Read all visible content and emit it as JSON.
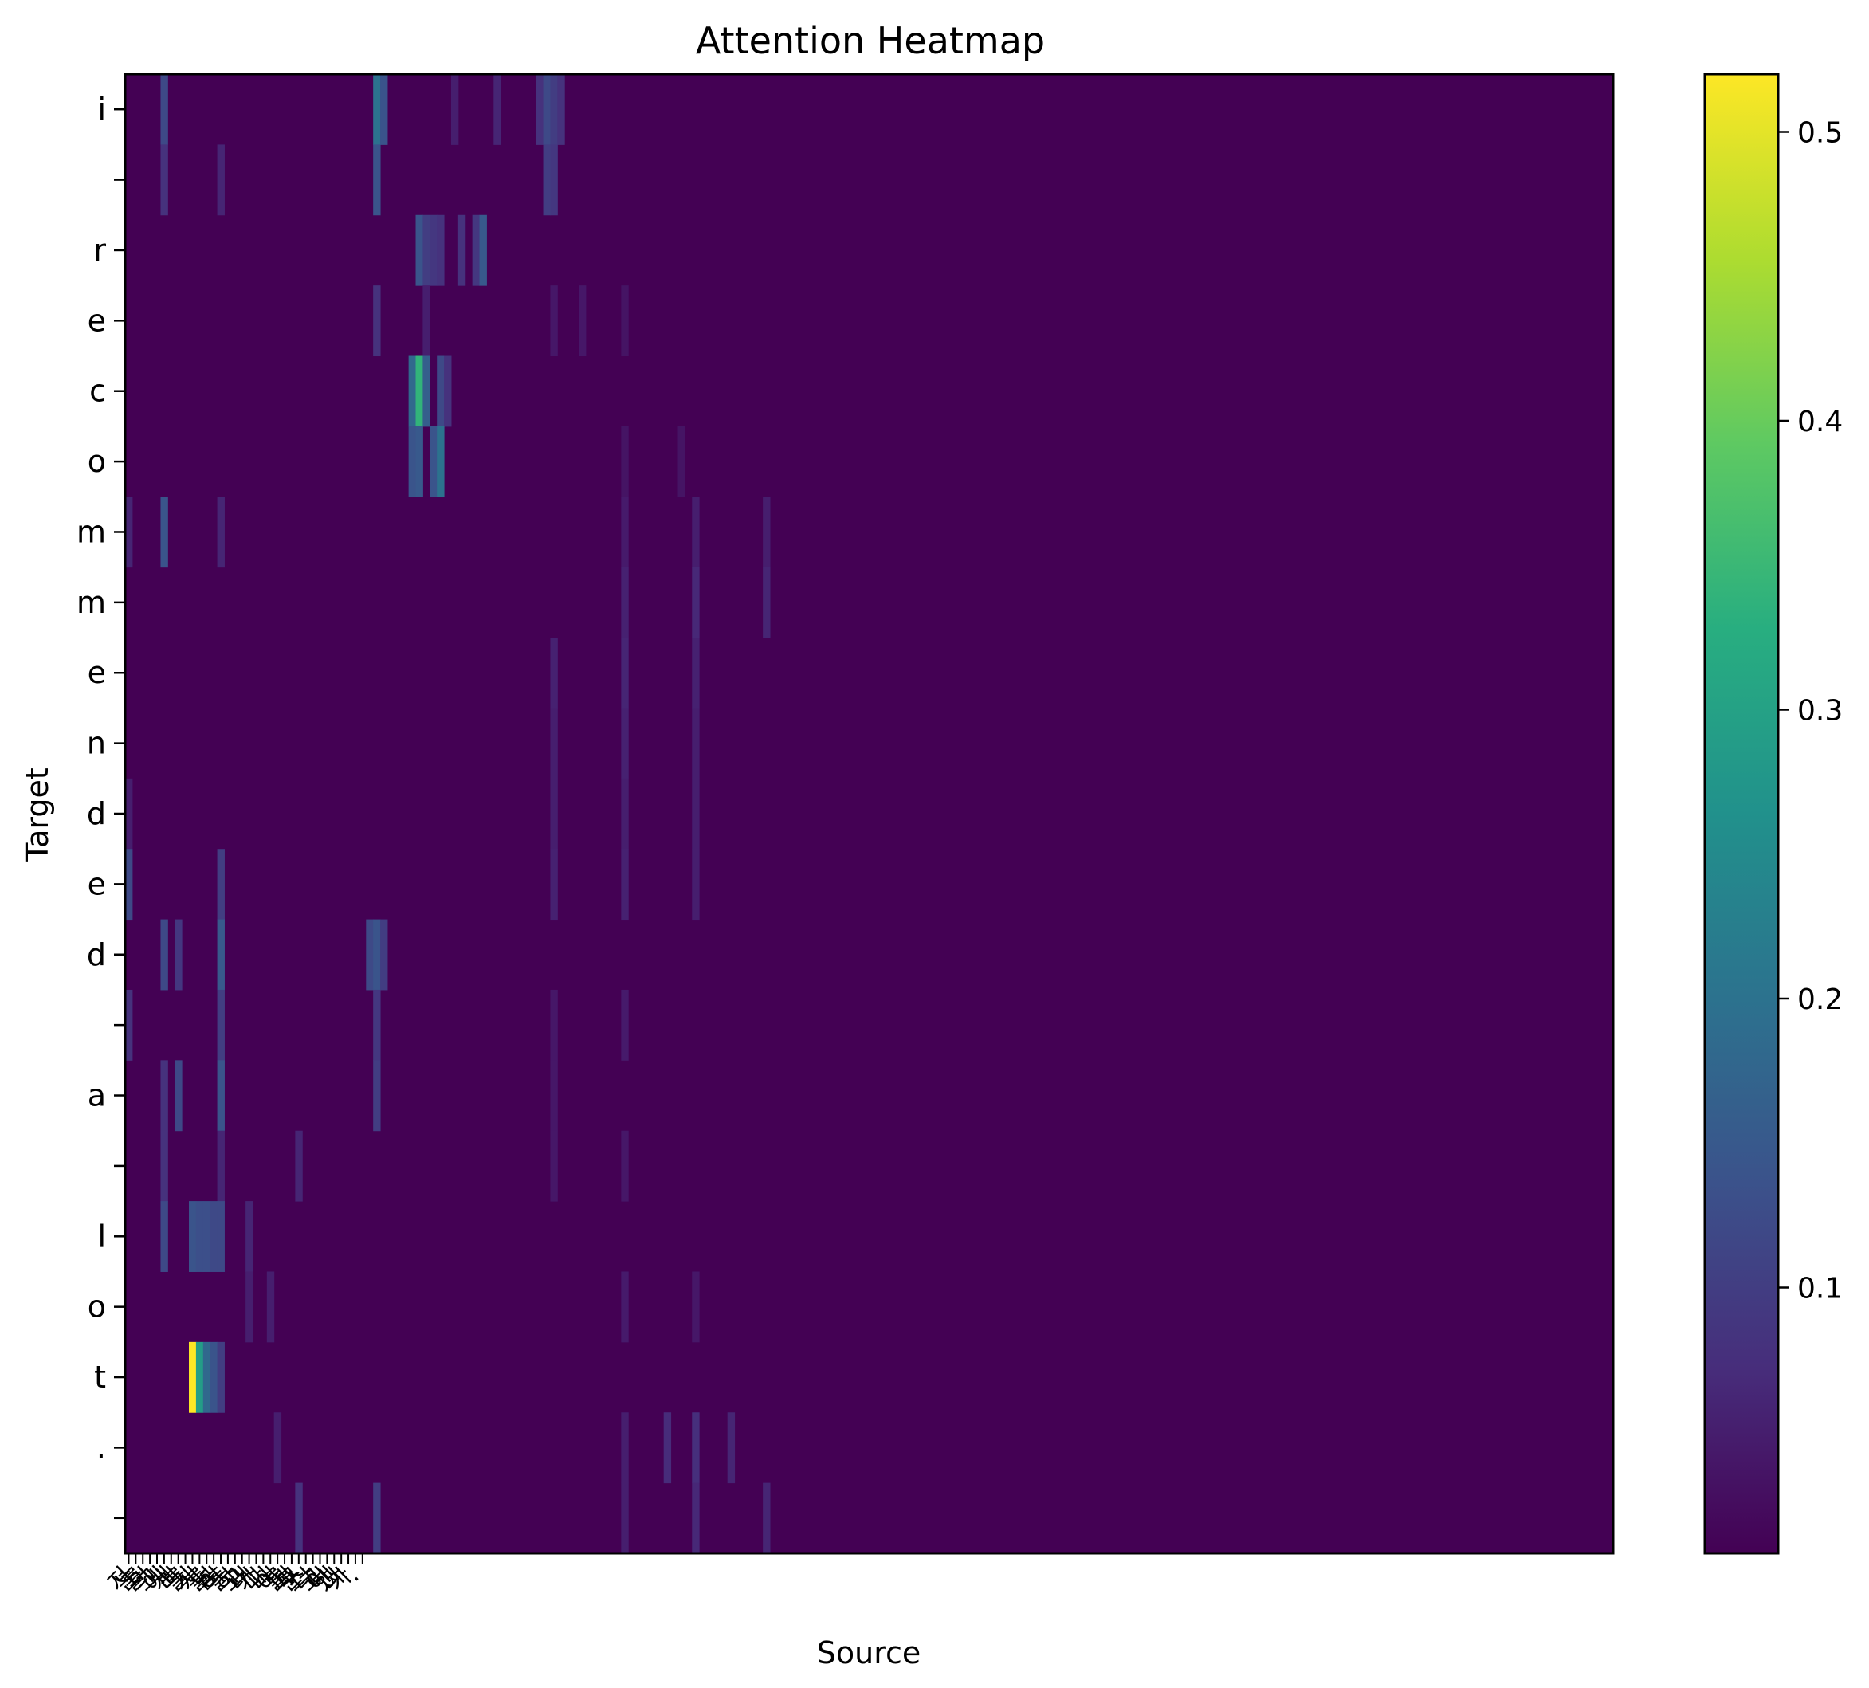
{
  "chart_data": {
    "type": "heatmap",
    "title": "Attention Heatmap",
    "xlabel": "Source",
    "ylabel": "Target",
    "colormap": "viridis",
    "colorbar": {
      "range": [
        0.008,
        0.52
      ],
      "ticks": [
        0.1,
        0.2,
        0.3,
        0.4,
        0.5
      ],
      "tick_labels": [
        "0.1",
        "0.2",
        "0.3",
        "0.4",
        "0.5"
      ]
    },
    "y_ticks": [
      "i",
      "",
      "r",
      "e",
      "c",
      "o",
      "m",
      "m",
      "e",
      "n",
      "d",
      "e",
      "d",
      "",
      "a",
      "",
      "l",
      "o",
      "t",
      ".",
      ""
    ],
    "x_ticks": [
      "저",
      "는",
      "를",
      "의",
      "그",
      "에",
      "게",
      "리",
      "를",
      "기",
      "시",
      "를",
      "넘",
      "어",
      "들",
      "하",
      "고",
      "내",
      "가",
      "다",
      "니",
      "어",
      "를",
      "때",
      "문",
      "스",
      "다",
      "고",
      "이",
      "했",
      "나",
      "가",
      ".",
      ""
    ],
    "n_source_cols": 210,
    "base_value": 0.008,
    "cells": [
      {
        "row": 0,
        "col": 5,
        "v": 0.12
      },
      {
        "row": 0,
        "col": 35,
        "v": 0.2
      },
      {
        "row": 0,
        "col": 36,
        "v": 0.14
      },
      {
        "row": 0,
        "col": 46,
        "v": 0.05
      },
      {
        "row": 0,
        "col": 52,
        "v": 0.06
      },
      {
        "row": 0,
        "col": 58,
        "v": 0.08
      },
      {
        "row": 0,
        "col": 59,
        "v": 0.12
      },
      {
        "row": 0,
        "col": 60,
        "v": 0.1
      },
      {
        "row": 0,
        "col": 61,
        "v": 0.08
      },
      {
        "row": 1,
        "col": 5,
        "v": 0.08
      },
      {
        "row": 1,
        "col": 13,
        "v": 0.06
      },
      {
        "row": 1,
        "col": 35,
        "v": 0.14
      },
      {
        "row": 1,
        "col": 59,
        "v": 0.1
      },
      {
        "row": 1,
        "col": 60,
        "v": 0.09
      },
      {
        "row": 2,
        "col": 41,
        "v": 0.14
      },
      {
        "row": 2,
        "col": 42,
        "v": 0.1
      },
      {
        "row": 2,
        "col": 43,
        "v": 0.09
      },
      {
        "row": 2,
        "col": 44,
        "v": 0.08
      },
      {
        "row": 2,
        "col": 47,
        "v": 0.08
      },
      {
        "row": 2,
        "col": 49,
        "v": 0.09
      },
      {
        "row": 2,
        "col": 50,
        "v": 0.15
      },
      {
        "row": 3,
        "col": 35,
        "v": 0.08
      },
      {
        "row": 3,
        "col": 42,
        "v": 0.05
      },
      {
        "row": 3,
        "col": 60,
        "v": 0.04
      },
      {
        "row": 3,
        "col": 64,
        "v": 0.04
      },
      {
        "row": 3,
        "col": 70,
        "v": 0.035
      },
      {
        "row": 4,
        "col": 40,
        "v": 0.18
      },
      {
        "row": 4,
        "col": 41,
        "v": 0.34
      },
      {
        "row": 4,
        "col": 42,
        "v": 0.16
      },
      {
        "row": 4,
        "col": 44,
        "v": 0.12
      },
      {
        "row": 4,
        "col": 45,
        "v": 0.08
      },
      {
        "row": 5,
        "col": 40,
        "v": 0.14
      },
      {
        "row": 5,
        "col": 41,
        "v": 0.15
      },
      {
        "row": 5,
        "col": 43,
        "v": 0.14
      },
      {
        "row": 5,
        "col": 44,
        "v": 0.2
      },
      {
        "row": 5,
        "col": 70,
        "v": 0.035
      },
      {
        "row": 5,
        "col": 78,
        "v": 0.035
      },
      {
        "row": 6,
        "col": 0,
        "v": 0.06
      },
      {
        "row": 6,
        "col": 5,
        "v": 0.14
      },
      {
        "row": 6,
        "col": 13,
        "v": 0.06
      },
      {
        "row": 6,
        "col": 70,
        "v": 0.045
      },
      {
        "row": 6,
        "col": 80,
        "v": 0.05
      },
      {
        "row": 6,
        "col": 90,
        "v": 0.05
      },
      {
        "row": 7,
        "col": 70,
        "v": 0.055
      },
      {
        "row": 7,
        "col": 80,
        "v": 0.065
      },
      {
        "row": 7,
        "col": 90,
        "v": 0.06
      },
      {
        "row": 8,
        "col": 60,
        "v": 0.055
      },
      {
        "row": 8,
        "col": 70,
        "v": 0.06
      },
      {
        "row": 8,
        "col": 80,
        "v": 0.055
      },
      {
        "row": 9,
        "col": 60,
        "v": 0.05
      },
      {
        "row": 9,
        "col": 70,
        "v": 0.055
      },
      {
        "row": 9,
        "col": 80,
        "v": 0.05
      },
      {
        "row": 10,
        "col": 0,
        "v": 0.05
      },
      {
        "row": 10,
        "col": 60,
        "v": 0.05
      },
      {
        "row": 10,
        "col": 70,
        "v": 0.05
      },
      {
        "row": 10,
        "col": 80,
        "v": 0.05
      },
      {
        "row": 11,
        "col": 0,
        "v": 0.12
      },
      {
        "row": 11,
        "col": 13,
        "v": 0.1
      },
      {
        "row": 11,
        "col": 60,
        "v": 0.055
      },
      {
        "row": 11,
        "col": 70,
        "v": 0.055
      },
      {
        "row": 11,
        "col": 80,
        "v": 0.05
      },
      {
        "row": 12,
        "col": 5,
        "v": 0.12
      },
      {
        "row": 12,
        "col": 7,
        "v": 0.09
      },
      {
        "row": 12,
        "col": 13,
        "v": 0.15
      },
      {
        "row": 12,
        "col": 34,
        "v": 0.12
      },
      {
        "row": 12,
        "col": 35,
        "v": 0.14
      },
      {
        "row": 12,
        "col": 36,
        "v": 0.1
      },
      {
        "row": 13,
        "col": 0,
        "v": 0.08
      },
      {
        "row": 13,
        "col": 13,
        "v": 0.1
      },
      {
        "row": 13,
        "col": 35,
        "v": 0.09
      },
      {
        "row": 13,
        "col": 60,
        "v": 0.04
      },
      {
        "row": 13,
        "col": 70,
        "v": 0.045
      },
      {
        "row": 14,
        "col": 5,
        "v": 0.08
      },
      {
        "row": 14,
        "col": 7,
        "v": 0.12
      },
      {
        "row": 14,
        "col": 13,
        "v": 0.14
      },
      {
        "row": 14,
        "col": 35,
        "v": 0.1
      },
      {
        "row": 14,
        "col": 60,
        "v": 0.04
      },
      {
        "row": 15,
        "col": 5,
        "v": 0.08
      },
      {
        "row": 15,
        "col": 13,
        "v": 0.06
      },
      {
        "row": 15,
        "col": 24,
        "v": 0.06
      },
      {
        "row": 15,
        "col": 60,
        "v": 0.04
      },
      {
        "row": 15,
        "col": 70,
        "v": 0.04
      },
      {
        "row": 16,
        "col": 5,
        "v": 0.12
      },
      {
        "row": 16,
        "col": 9,
        "v": 0.14
      },
      {
        "row": 16,
        "col": 10,
        "v": 0.13
      },
      {
        "row": 16,
        "col": 11,
        "v": 0.13
      },
      {
        "row": 16,
        "col": 12,
        "v": 0.12
      },
      {
        "row": 16,
        "col": 13,
        "v": 0.12
      },
      {
        "row": 16,
        "col": 17,
        "v": 0.06
      },
      {
        "row": 17,
        "col": 17,
        "v": 0.05
      },
      {
        "row": 17,
        "col": 20,
        "v": 0.05
      },
      {
        "row": 17,
        "col": 70,
        "v": 0.045
      },
      {
        "row": 17,
        "col": 80,
        "v": 0.04
      },
      {
        "row": 18,
        "col": 9,
        "v": 0.52
      },
      {
        "row": 18,
        "col": 10,
        "v": 0.29
      },
      {
        "row": 18,
        "col": 11,
        "v": 0.18
      },
      {
        "row": 18,
        "col": 12,
        "v": 0.14
      },
      {
        "row": 18,
        "col": 13,
        "v": 0.1
      },
      {
        "row": 19,
        "col": 21,
        "v": 0.05
      },
      {
        "row": 19,
        "col": 70,
        "v": 0.05
      },
      {
        "row": 19,
        "col": 76,
        "v": 0.07
      },
      {
        "row": 19,
        "col": 80,
        "v": 0.075
      },
      {
        "row": 19,
        "col": 85,
        "v": 0.06
      },
      {
        "row": 20,
        "col": 24,
        "v": 0.08
      },
      {
        "row": 20,
        "col": 35,
        "v": 0.1
      },
      {
        "row": 20,
        "col": 70,
        "v": 0.05
      },
      {
        "row": 20,
        "col": 80,
        "v": 0.065
      },
      {
        "row": 20,
        "col": 90,
        "v": 0.06
      }
    ]
  }
}
